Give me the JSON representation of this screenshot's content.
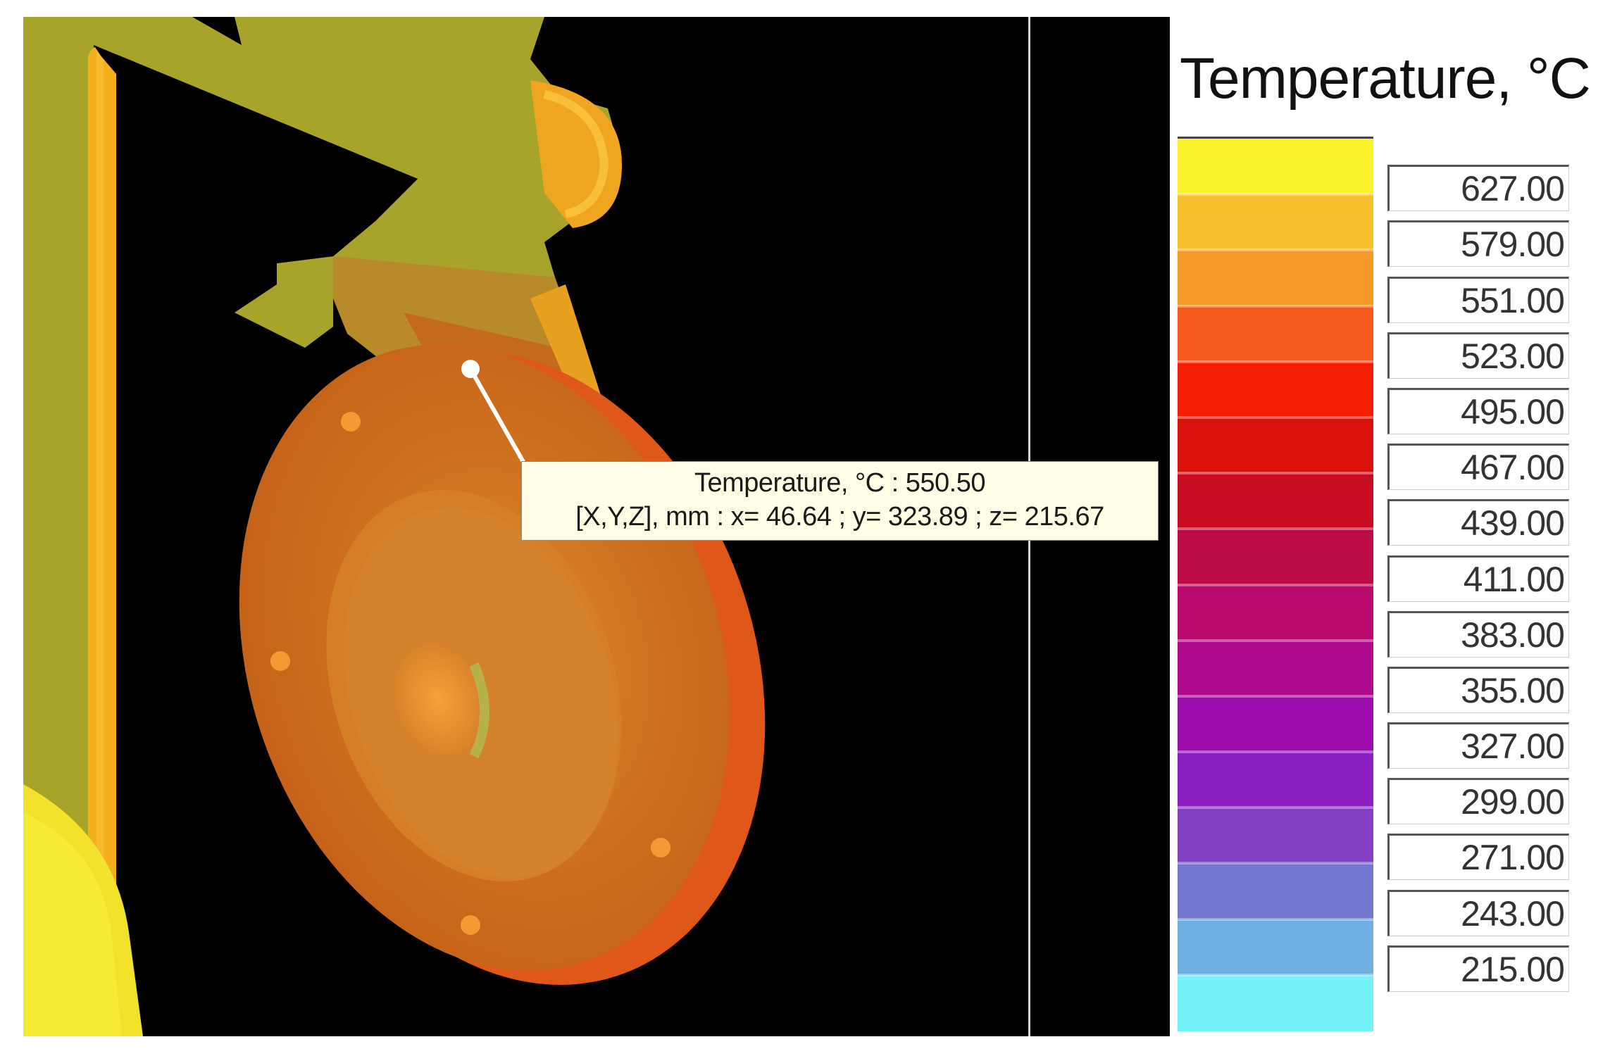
{
  "tooltip": {
    "line1": "Temperature, °C : 550.50",
    "line2": "[X,Y,Z], mm : x= 46.64 ; y= 323.89 ; z= 215.67"
  },
  "legend": {
    "title": "Temperature, °C",
    "entries": [
      {
        "value": "627.00",
        "color": "#fbf22b"
      },
      {
        "value": "579.00",
        "color": "#f8c02e"
      },
      {
        "value": "551.00",
        "color": "#f79a2a"
      },
      {
        "value": "523.00",
        "color": "#f75a1c"
      },
      {
        "value": "495.00",
        "color": "#f41e05"
      },
      {
        "value": "467.00",
        "color": "#d8120a"
      },
      {
        "value": "439.00",
        "color": "#c80c22"
      },
      {
        "value": "411.00",
        "color": "#bd0c45"
      },
      {
        "value": "383.00",
        "color": "#ba0a6e"
      },
      {
        "value": "355.00",
        "color": "#b00a8e"
      },
      {
        "value": "327.00",
        "color": "#9d0cad"
      },
      {
        "value": "299.00",
        "color": "#8b20c1"
      },
      {
        "value": "271.00",
        "color": "#8241c4"
      },
      {
        "value": "243.00",
        "color": "#7578cf"
      },
      {
        "value": "215.00",
        "color": "#6fb0e0"
      }
    ],
    "bottom_color": "#74f2f7"
  },
  "model_colors": {
    "bracket": "#a8a32a",
    "rod": "#f8b21e",
    "disc": "#cf6c1a",
    "disc_inner": "#d37a24",
    "rim": "#e0571a",
    "hot_yellow": "#f2e22b"
  }
}
